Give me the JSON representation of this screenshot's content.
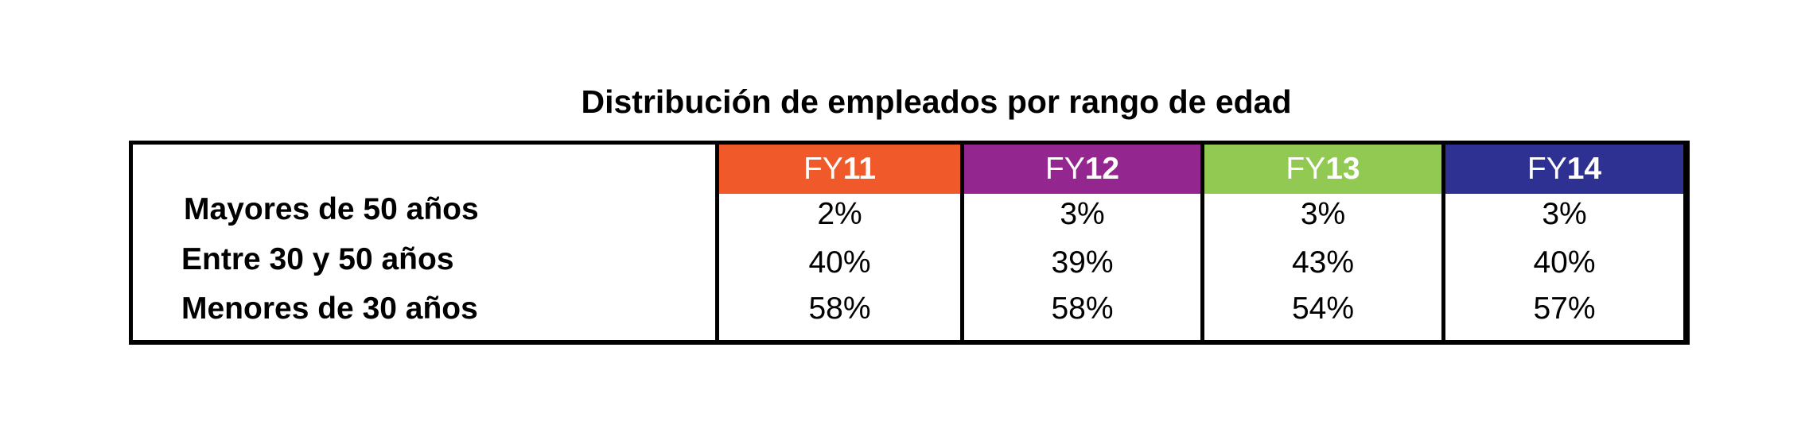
{
  "chart_data": {
    "type": "table",
    "title": "Distribución de empleados por rango de edad",
    "columns": [
      {
        "prefix": "FY",
        "number": "11",
        "color": "#f05a2b"
      },
      {
        "prefix": "FY",
        "number": "12",
        "color": "#93268f"
      },
      {
        "prefix": "FY",
        "number": "13",
        "color": "#92c952"
      },
      {
        "prefix": "FY",
        "number": "14",
        "color": "#2e3192"
      }
    ],
    "rows": [
      {
        "label": "Mayores de 50 años",
        "values": [
          "2%",
          "3%",
          "3%",
          "3%"
        ]
      },
      {
        "label": "Entre 30 y 50 años",
        "values": [
          "40%",
          "39%",
          "43%",
          "40%"
        ]
      },
      {
        "label": "Menores de 30 años",
        "values": [
          "58%",
          "58%",
          "54%",
          "57%"
        ]
      }
    ]
  }
}
